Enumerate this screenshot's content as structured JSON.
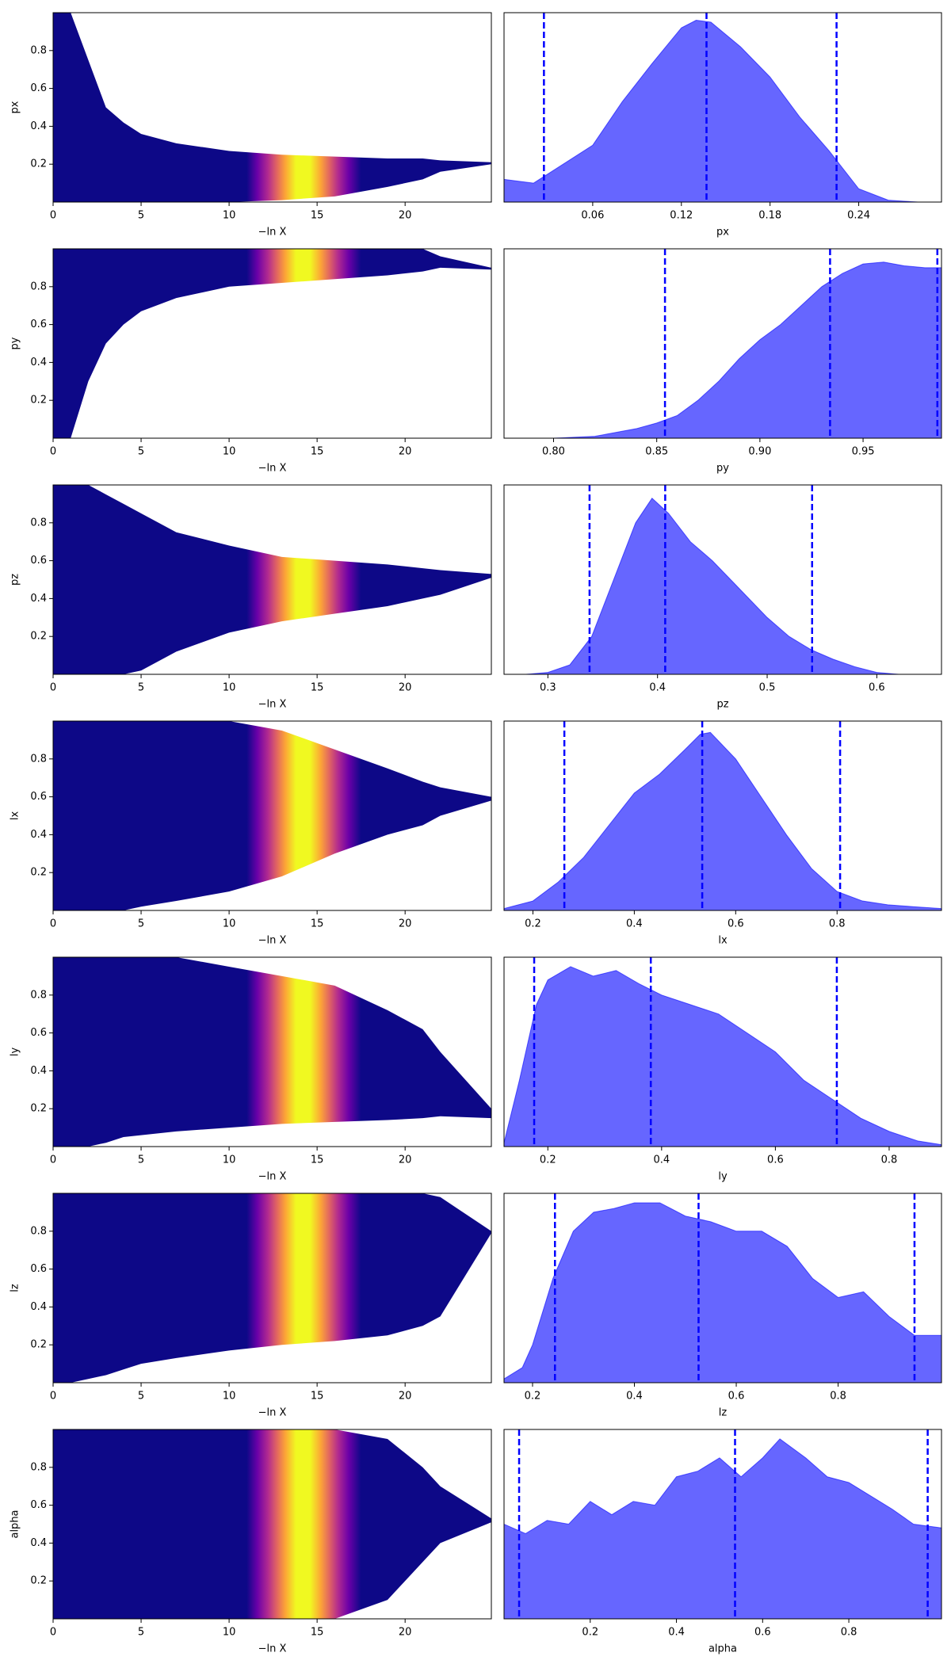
{
  "chart_data": [
    {
      "type": "band",
      "xlabel": "−ln X",
      "ylabel": "px",
      "x": [
        0,
        1,
        2,
        3,
        4,
        5,
        7,
        10,
        13,
        16,
        19,
        21,
        22,
        24.9
      ],
      "upper": [
        1,
        1,
        0.75,
        0.5,
        0.42,
        0.36,
        0.31,
        0.27,
        0.25,
        0.24,
        0.23,
        0.23,
        0.22,
        0.21
      ],
      "lower": [
        0,
        0,
        0,
        0,
        0,
        0,
        0,
        0,
        0.01,
        0.03,
        0.08,
        0.12,
        0.16,
        0.2
      ],
      "xlim": [
        0,
        24.9
      ],
      "xticks": [
        0,
        5,
        10,
        15,
        20
      ],
      "ylim": [
        0,
        1
      ],
      "yticks": [
        0.2,
        0.4,
        0.6,
        0.8
      ],
      "colors": [
        "#0d0887",
        "#6a00a8",
        "#b12a90",
        "#e16462",
        "#fca636",
        "#f0f921",
        "#f0f921",
        "#fca636",
        "#e16462",
        "#b12a90",
        "#6a00a8",
        "#0d0887"
      ],
      "color_x": [
        11,
        11.6,
        12.2,
        12.7,
        13.2,
        13.8,
        14.6,
        15.2,
        15.7,
        16.2,
        16.8,
        17.5
      ]
    },
    {
      "type": "density",
      "xlabel": "px",
      "color": "#0000ff",
      "opacity": 0.6,
      "x": [
        0,
        0.02,
        0.04,
        0.06,
        0.08,
        0.1,
        0.12,
        0.13,
        0.14,
        0.16,
        0.18,
        0.2,
        0.22,
        0.24,
        0.26,
        0.28,
        0.296
      ],
      "values": [
        0.12,
        0.1,
        0.2,
        0.3,
        0.53,
        0.73,
        0.92,
        0.96,
        0.95,
        0.82,
        0.66,
        0.45,
        0.27,
        0.07,
        0.01,
        0,
        0
      ],
      "vlines": [
        0.027,
        0.137,
        0.225
      ],
      "xlim": [
        0,
        0.296
      ],
      "xticks": [
        0.06,
        0.12,
        0.18,
        0.24
      ],
      "ylim": [
        0,
        1
      ]
    },
    {
      "type": "band",
      "xlabel": "−ln X",
      "ylabel": "py",
      "x": [
        0,
        1,
        2,
        3,
        4,
        5,
        7,
        10,
        13,
        16,
        19,
        21,
        22,
        24.9
      ],
      "upper": [
        1,
        1,
        1,
        1,
        1,
        1,
        1,
        1,
        1,
        1,
        1,
        1,
        0.96,
        0.9
      ],
      "lower": [
        0,
        0,
        0.3,
        0.5,
        0.6,
        0.67,
        0.74,
        0.8,
        0.82,
        0.84,
        0.86,
        0.88,
        0.9,
        0.89
      ],
      "xlim": [
        0,
        24.9
      ],
      "xticks": [
        0,
        5,
        10,
        15,
        20
      ],
      "ylim": [
        0,
        1
      ],
      "yticks": [
        0.2,
        0.4,
        0.6,
        0.8
      ],
      "colors": [
        "#0d0887",
        "#6a00a8",
        "#b12a90",
        "#e16462",
        "#fca636",
        "#f0f921",
        "#f0f921",
        "#fca636",
        "#e16462",
        "#b12a90",
        "#6a00a8",
        "#0d0887"
      ],
      "color_x": [
        11,
        11.6,
        12.2,
        12.7,
        13.2,
        13.8,
        14.6,
        15.2,
        15.7,
        16.2,
        16.8,
        17.5
      ]
    },
    {
      "type": "density",
      "xlabel": "py",
      "color": "#0000ff",
      "opacity": 0.6,
      "x": [
        0.776,
        0.8,
        0.82,
        0.84,
        0.85,
        0.86,
        0.87,
        0.88,
        0.89,
        0.9,
        0.91,
        0.92,
        0.93,
        0.94,
        0.95,
        0.96,
        0.97,
        0.98,
        0.988
      ],
      "values": [
        0,
        0,
        0.01,
        0.05,
        0.08,
        0.12,
        0.2,
        0.3,
        0.42,
        0.52,
        0.6,
        0.7,
        0.8,
        0.87,
        0.92,
        0.93,
        0.91,
        0.9,
        0.9
      ],
      "vlines": [
        0.854,
        0.934,
        0.986
      ],
      "xlim": [
        0.776,
        0.988
      ],
      "xticks": [
        {
          "value": 0.8,
          "label": "0.80"
        },
        0.85,
        {
          "value": 0.9,
          "label": "0.90"
        },
        0.95
      ],
      "ylim": [
        0,
        1
      ]
    },
    {
      "type": "band",
      "xlabel": "−ln X",
      "ylabel": "pz",
      "x": [
        0,
        1,
        2,
        3,
        4,
        5,
        7,
        10,
        13,
        16,
        19,
        21,
        22,
        24.9
      ],
      "upper": [
        1,
        1,
        1,
        0.95,
        0.9,
        0.85,
        0.75,
        0.68,
        0.62,
        0.6,
        0.58,
        0.56,
        0.55,
        0.53
      ],
      "lower": [
        0,
        0,
        0,
        0,
        0,
        0.02,
        0.12,
        0.22,
        0.28,
        0.32,
        0.36,
        0.4,
        0.42,
        0.51
      ],
      "xlim": [
        0,
        24.9
      ],
      "xticks": [
        0,
        5,
        10,
        15,
        20
      ],
      "ylim": [
        0,
        1
      ],
      "yticks": [
        0.2,
        0.4,
        0.6,
        0.8
      ],
      "colors": [
        "#0d0887",
        "#6a00a8",
        "#b12a90",
        "#e16462",
        "#fca636",
        "#f0f921",
        "#f0f921",
        "#fca636",
        "#e16462",
        "#b12a90",
        "#6a00a8",
        "#0d0887"
      ],
      "color_x": [
        11,
        11.6,
        12.2,
        12.7,
        13.2,
        13.8,
        14.6,
        15.2,
        15.7,
        16.2,
        16.8,
        17.5
      ]
    },
    {
      "type": "density",
      "xlabel": "pz",
      "color": "#0000ff",
      "opacity": 0.6,
      "x": [
        0.26,
        0.28,
        0.3,
        0.32,
        0.34,
        0.36,
        0.38,
        0.395,
        0.41,
        0.43,
        0.45,
        0.47,
        0.5,
        0.52,
        0.54,
        0.56,
        0.58,
        0.6,
        0.62,
        0.659
      ],
      "values": [
        0,
        0,
        0.01,
        0.05,
        0.2,
        0.5,
        0.8,
        0.93,
        0.85,
        0.7,
        0.6,
        0.48,
        0.3,
        0.2,
        0.13,
        0.08,
        0.04,
        0.01,
        0,
        0
      ],
      "vlines": [
        0.338,
        0.407,
        0.541
      ],
      "xlim": [
        0.26,
        0.659
      ],
      "xticks": [
        0.3,
        0.4,
        0.5,
        0.6
      ],
      "ylim": [
        0,
        1
      ]
    },
    {
      "type": "band",
      "xlabel": "−ln X",
      "ylabel": "lx",
      "x": [
        0,
        1,
        2,
        3,
        4,
        5,
        7,
        10,
        13,
        16,
        19,
        21,
        22,
        24.9
      ],
      "upper": [
        1,
        1,
        1,
        1,
        1,
        1,
        1,
        1,
        0.95,
        0.85,
        0.75,
        0.68,
        0.65,
        0.6
      ],
      "lower": [
        0,
        0,
        0,
        0,
        0,
        0.02,
        0.05,
        0.1,
        0.18,
        0.3,
        0.4,
        0.45,
        0.5,
        0.58
      ],
      "xlim": [
        0,
        24.9
      ],
      "xticks": [
        0,
        5,
        10,
        15,
        20
      ],
      "ylim": [
        0,
        1
      ],
      "yticks": [
        0.2,
        0.4,
        0.6,
        0.8
      ],
      "colors": [
        "#0d0887",
        "#6a00a8",
        "#b12a90",
        "#e16462",
        "#fca636",
        "#f0f921",
        "#f0f921",
        "#fca636",
        "#e16462",
        "#b12a90",
        "#6a00a8",
        "#0d0887"
      ],
      "color_x": [
        11,
        11.6,
        12.2,
        12.7,
        13.2,
        13.8,
        14.6,
        15.2,
        15.7,
        16.2,
        16.8,
        17.5
      ]
    },
    {
      "type": "density",
      "xlabel": "lx",
      "color": "#0000ff",
      "opacity": 0.6,
      "x": [
        0.143,
        0.2,
        0.25,
        0.3,
        0.35,
        0.4,
        0.45,
        0.5,
        0.53,
        0.55,
        0.6,
        0.65,
        0.7,
        0.75,
        0.8,
        0.85,
        0.9,
        0.95,
        1.006
      ],
      "values": [
        0.01,
        0.05,
        0.15,
        0.28,
        0.45,
        0.62,
        0.72,
        0.85,
        0.93,
        0.94,
        0.8,
        0.6,
        0.4,
        0.22,
        0.1,
        0.05,
        0.03,
        0.02,
        0.01
      ],
      "vlines": [
        0.262,
        0.534,
        0.806
      ],
      "xlim": [
        0.143,
        1.006
      ],
      "xticks": [
        0.2,
        0.4,
        0.6,
        0.8
      ],
      "ylim": [
        0,
        1
      ]
    },
    {
      "type": "band",
      "xlabel": "−ln X",
      "ylabel": "ly",
      "x": [
        0,
        1,
        2,
        3,
        4,
        5,
        7,
        10,
        13,
        16,
        19,
        21,
        22,
        24.9
      ],
      "upper": [
        1,
        1,
        1,
        1,
        1,
        1,
        1,
        0.95,
        0.9,
        0.85,
        0.72,
        0.62,
        0.5,
        0.2
      ],
      "lower": [
        0,
        0,
        0,
        0.02,
        0.05,
        0.06,
        0.08,
        0.1,
        0.12,
        0.13,
        0.14,
        0.15,
        0.16,
        0.15
      ],
      "xlim": [
        0,
        24.9
      ],
      "xticks": [
        0,
        5,
        10,
        15,
        20
      ],
      "ylim": [
        0,
        1
      ],
      "yticks": [
        0.2,
        0.4,
        0.6,
        0.8
      ],
      "colors": [
        "#0d0887",
        "#6a00a8",
        "#b12a90",
        "#e16462",
        "#fca636",
        "#f0f921",
        "#f0f921",
        "#fca636",
        "#e16462",
        "#b12a90",
        "#6a00a8",
        "#0d0887"
      ],
      "color_x": [
        11,
        11.6,
        12.2,
        12.7,
        13.2,
        13.8,
        14.6,
        15.2,
        15.7,
        16.2,
        16.8,
        17.5
      ]
    },
    {
      "type": "density",
      "xlabel": "ly",
      "color": "#0000ff",
      "opacity": 0.6,
      "x": [
        0.123,
        0.15,
        0.18,
        0.2,
        0.24,
        0.28,
        0.32,
        0.36,
        0.4,
        0.45,
        0.5,
        0.55,
        0.6,
        0.65,
        0.7,
        0.75,
        0.8,
        0.85,
        0.892
      ],
      "values": [
        0.02,
        0.35,
        0.75,
        0.88,
        0.95,
        0.9,
        0.93,
        0.86,
        0.8,
        0.75,
        0.7,
        0.6,
        0.5,
        0.35,
        0.25,
        0.15,
        0.08,
        0.03,
        0.01
      ],
      "vlines": [
        0.176,
        0.381,
        0.708
      ],
      "xlim": [
        0.123,
        0.892
      ],
      "xticks": [
        0.2,
        0.4,
        0.6,
        0.8
      ],
      "ylim": [
        0,
        1
      ]
    },
    {
      "type": "band",
      "xlabel": "−ln X",
      "ylabel": "lz",
      "x": [
        0,
        1,
        2,
        3,
        4,
        5,
        7,
        10,
        13,
        16,
        19,
        21,
        22,
        24.9
      ],
      "upper": [
        1,
        1,
        1,
        1,
        1,
        1,
        1,
        1,
        1,
        1,
        1,
        1,
        0.98,
        0.8
      ],
      "lower": [
        0,
        0,
        0.02,
        0.04,
        0.07,
        0.1,
        0.13,
        0.17,
        0.2,
        0.22,
        0.25,
        0.3,
        0.35,
        0.79
      ],
      "xlim": [
        0,
        24.9
      ],
      "xticks": [
        0,
        5,
        10,
        15,
        20
      ],
      "ylim": [
        0,
        1
      ],
      "yticks": [
        0.2,
        0.4,
        0.6,
        0.8
      ],
      "colors": [
        "#0d0887",
        "#6a00a8",
        "#b12a90",
        "#e16462",
        "#fca636",
        "#f0f921",
        "#f0f921",
        "#fca636",
        "#e16462",
        "#b12a90",
        "#6a00a8",
        "#0d0887"
      ],
      "color_x": [
        11,
        11.6,
        12.2,
        12.7,
        13.2,
        13.8,
        14.6,
        15.2,
        15.7,
        16.2,
        16.8,
        17.5
      ]
    },
    {
      "type": "density",
      "xlabel": "lz",
      "color": "#0000ff",
      "opacity": 0.6,
      "x": [
        0.144,
        0.18,
        0.2,
        0.24,
        0.28,
        0.32,
        0.36,
        0.4,
        0.45,
        0.5,
        0.55,
        0.6,
        0.65,
        0.7,
        0.75,
        0.8,
        0.85,
        0.9,
        0.95,
        1.003
      ],
      "values": [
        0.02,
        0.08,
        0.2,
        0.55,
        0.8,
        0.9,
        0.92,
        0.95,
        0.95,
        0.88,
        0.85,
        0.8,
        0.8,
        0.72,
        0.55,
        0.45,
        0.48,
        0.35,
        0.25,
        0.25
      ],
      "vlines": [
        0.244,
        0.526,
        0.95
      ],
      "xlim": [
        0.144,
        1.003
      ],
      "xticks": [
        0.2,
        0.4,
        0.6,
        0.8
      ],
      "ylim": [
        0,
        1
      ]
    },
    {
      "type": "band",
      "xlabel": "−ln X",
      "ylabel": "alpha",
      "x": [
        0,
        1,
        2,
        3,
        4,
        5,
        7,
        10,
        13,
        16,
        19,
        21,
        22,
        24.9
      ],
      "upper": [
        1,
        1,
        1,
        1,
        1,
        1,
        1,
        1,
        1,
        1,
        0.95,
        0.8,
        0.7,
        0.53
      ],
      "lower": [
        0,
        0,
        0,
        0,
        0,
        0,
        0,
        0,
        0,
        0,
        0.1,
        0.3,
        0.4,
        0.51
      ],
      "xlim": [
        0,
        24.9
      ],
      "xticks": [
        0,
        5,
        10,
        15,
        20
      ],
      "ylim": [
        0,
        1
      ],
      "yticks": [
        0.2,
        0.4,
        0.6,
        0.8
      ],
      "colors": [
        "#0d0887",
        "#6a00a8",
        "#b12a90",
        "#e16462",
        "#fca636",
        "#f0f921",
        "#f0f921",
        "#fca636",
        "#e16462",
        "#b12a90",
        "#6a00a8",
        "#0d0887"
      ],
      "color_x": [
        11,
        11.6,
        12.2,
        12.7,
        13.2,
        13.8,
        14.6,
        15.2,
        15.7,
        16.2,
        16.8,
        17.5
      ]
    },
    {
      "type": "density",
      "xlabel": "alpha",
      "color": "#0000ff",
      "opacity": 0.6,
      "x": [
        0,
        0.05,
        0.1,
        0.15,
        0.2,
        0.25,
        0.3,
        0.35,
        0.4,
        0.45,
        0.5,
        0.55,
        0.6,
        0.64,
        0.7,
        0.75,
        0.8,
        0.85,
        0.9,
        0.95,
        1.015
      ],
      "values": [
        0.5,
        0.45,
        0.52,
        0.5,
        0.62,
        0.55,
        0.62,
        0.6,
        0.75,
        0.78,
        0.85,
        0.75,
        0.85,
        0.95,
        0.85,
        0.75,
        0.72,
        0.65,
        0.58,
        0.5,
        0.48
      ],
      "vlines": [
        0.035,
        0.536,
        0.983
      ],
      "xlim": [
        0,
        1.015
      ],
      "xticks": [
        0.2,
        0.4,
        0.6,
        0.8
      ],
      "ylim": [
        0,
        1
      ]
    }
  ]
}
